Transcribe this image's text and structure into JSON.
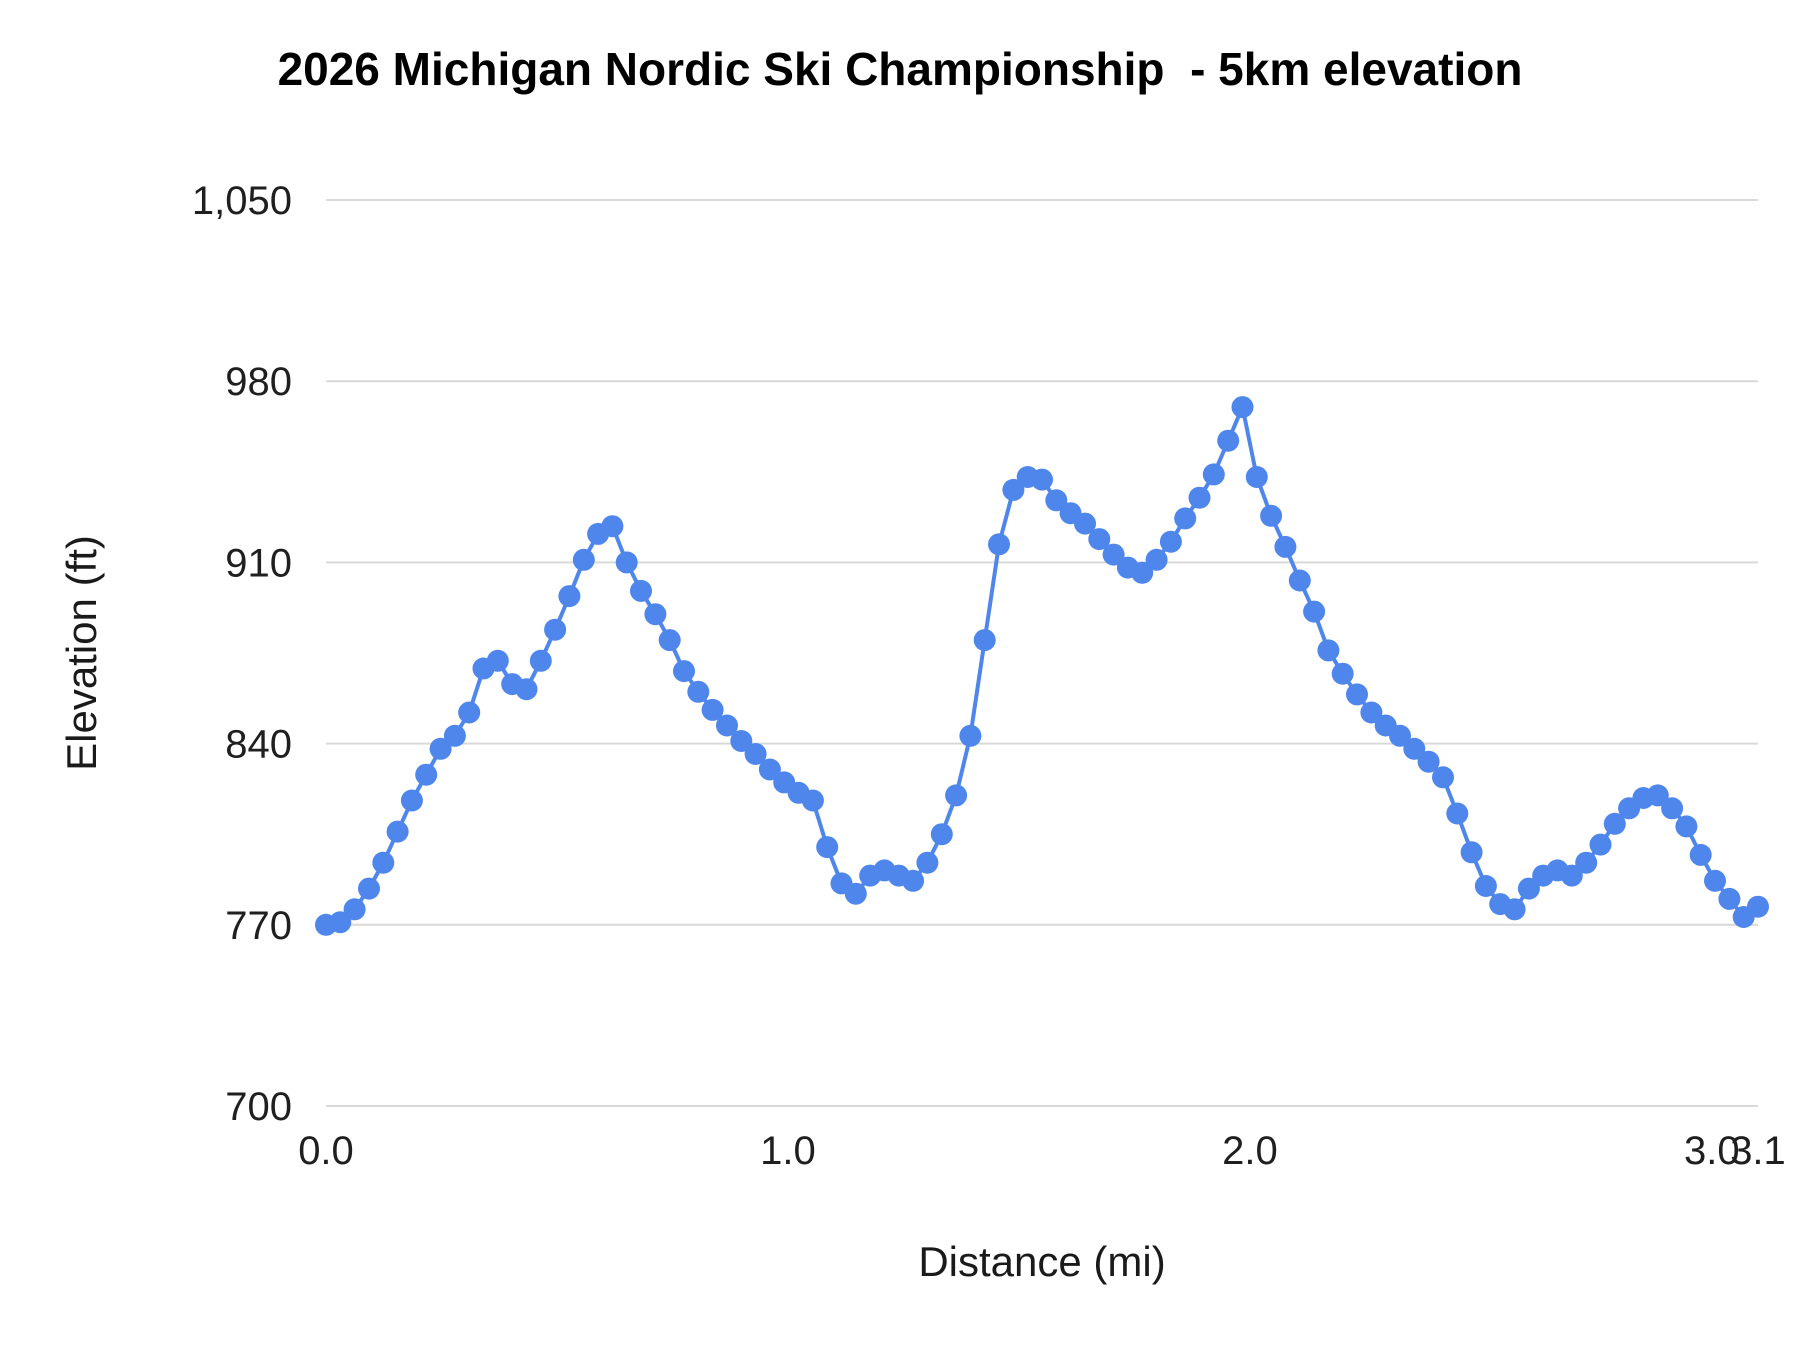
{
  "page": {
    "background": "#ffffff"
  },
  "chart_data": {
    "type": "line",
    "title": "2026 Michigan Nordic Ski Championship  - 5km elevation",
    "xlabel": "Distance (mi)",
    "ylabel": "Elevation (ft)",
    "series_name": "Elevation",
    "line_color": "#4e86ec",
    "marker": "circle",
    "marker_color": "#4e86ec",
    "grid": true,
    "grid_color": "#d9d9d9",
    "legend": "none",
    "xlim": [
      0,
      3.1
    ],
    "ylim": [
      700,
      1050
    ],
    "yticks": [
      700,
      770,
      840,
      910,
      980,
      1050
    ],
    "ytick_labels": [
      "700",
      "770",
      "840",
      "910",
      "980",
      "1,050"
    ],
    "xticks": [
      0,
      1,
      2,
      3,
      3.1
    ],
    "xtick_labels": [
      "0.0",
      "1.0",
      "2.0",
      "3.0",
      "3.1"
    ],
    "x": [
      0,
      0.031,
      0.062,
      0.093,
      0.124,
      0.155,
      0.186,
      0.217,
      0.248,
      0.279,
      0.31,
      0.341,
      0.372,
      0.403,
      0.434,
      0.465,
      0.496,
      0.527,
      0.558,
      0.589,
      0.62,
      0.651,
      0.682,
      0.713,
      0.744,
      0.775,
      0.806,
      0.837,
      0.868,
      0.899,
      0.93,
      0.961,
      0.992,
      1.023,
      1.054,
      1.085,
      1.116,
      1.147,
      1.178,
      1.209,
      1.24,
      1.271,
      1.302,
      1.333,
      1.364,
      1.395,
      1.426,
      1.457,
      1.488,
      1.519,
      1.55,
      1.581,
      1.612,
      1.643,
      1.674,
      1.705,
      1.736,
      1.767,
      1.798,
      1.829,
      1.86,
      1.891,
      1.922,
      1.953,
      1.984,
      2.015,
      2.046,
      2.077,
      2.108,
      2.139,
      2.17,
      2.201,
      2.232,
      2.263,
      2.294,
      2.325,
      2.356,
      2.387,
      2.418,
      2.449,
      2.48,
      2.511,
      2.542,
      2.573,
      2.604,
      2.635,
      2.666,
      2.697,
      2.728,
      2.759,
      2.79,
      2.821,
      2.852,
      2.883,
      2.914,
      2.945,
      2.976,
      3.007,
      3.038,
      3.069,
      3.1
    ],
    "y": [
      770,
      771,
      776,
      784,
      794,
      806,
      818,
      828,
      838,
      843,
      852,
      869,
      872,
      863,
      861,
      872,
      884,
      897,
      911,
      921,
      924,
      910,
      899,
      890,
      880,
      868,
      860,
      853,
      847,
      841,
      836,
      830,
      825,
      821,
      818,
      800,
      786,
      782,
      789,
      791,
      789,
      787,
      794,
      805,
      820,
      843,
      880,
      917,
      938,
      943,
      942,
      934,
      929,
      925,
      919,
      913,
      908,
      906,
      911,
      918,
      927,
      935,
      944,
      957,
      970,
      943,
      928,
      916,
      903,
      891,
      876,
      867,
      859,
      852,
      847,
      843,
      838,
      833,
      827,
      813,
      798,
      785,
      778,
      776,
      784,
      789,
      791,
      789,
      794,
      801,
      809,
      815,
      819,
      820,
      815,
      808,
      797,
      787,
      780,
      773,
      777
    ]
  }
}
